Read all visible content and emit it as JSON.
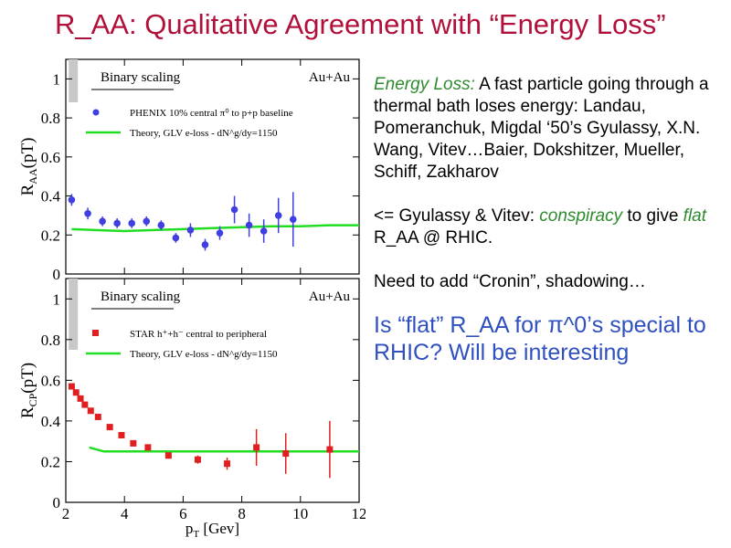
{
  "slide": {
    "title": "R_AA: Qualitative Agreement with “Energy Loss”"
  },
  "notes": {
    "p1_em": "Energy Loss:",
    "p1_rest": " A fast particle going through a thermal bath loses energy: Landau, Pomeranchuk, Migdal ‘50’s Gyulassy, X.N. Wang, Vitev…Baier, Dokshitzer, Mueller, Schiff, Zakharov",
    "p2_a": "<= Gyulassy & Vitev: ",
    "p2_em1": "conspiracy",
    "p2_b": " to give ",
    "p2_em2": "flat",
    "p2_c": " R_AA @ RHIC.",
    "p3": "Need to add “Cronin”, shadowing…",
    "p4": "Is “flat” R_AA for π^0’s special to RHIC?  Will be interesting"
  },
  "colors": {
    "data_top": "#4040e0",
    "data_bottom": "#e02020",
    "theory": "#22dd22",
    "band": "#c8c8c8",
    "title": "#b0103a"
  },
  "chart_data": [
    {
      "type": "scatter",
      "ylabel": "R_AA(p_T)",
      "legend": [
        "Binary scaling",
        "PHENIX 10% central π⁰ to p+p baseline",
        "Theory, GLV e-loss - dN^g/dy=1150"
      ],
      "system_label": "Au+Au",
      "xlim": [
        2,
        12
      ],
      "ylim": [
        0,
        1.1
      ],
      "yticks": [
        "0",
        "0.2",
        "0.4",
        "0.6",
        "0.8",
        "1"
      ],
      "band": {
        "ylo": 0.88,
        "yhi": 1.12
      },
      "points": [
        {
          "x": 2.2,
          "y": 0.38,
          "err": 0.03
        },
        {
          "x": 2.75,
          "y": 0.31,
          "err": 0.03
        },
        {
          "x": 3.25,
          "y": 0.27,
          "err": 0.025
        },
        {
          "x": 3.75,
          "y": 0.26,
          "err": 0.025
        },
        {
          "x": 4.25,
          "y": 0.26,
          "err": 0.025
        },
        {
          "x": 4.75,
          "y": 0.27,
          "err": 0.025
        },
        {
          "x": 5.25,
          "y": 0.25,
          "err": 0.025
        },
        {
          "x": 5.75,
          "y": 0.185,
          "err": 0.025
        },
        {
          "x": 6.25,
          "y": 0.225,
          "err": 0.035
        },
        {
          "x": 6.75,
          "y": 0.15,
          "err": 0.03
        },
        {
          "x": 7.25,
          "y": 0.21,
          "err": 0.035
        },
        {
          "x": 7.75,
          "y": 0.33,
          "err": 0.07
        },
        {
          "x": 8.25,
          "y": 0.25,
          "err": 0.06
        },
        {
          "x": 8.75,
          "y": 0.22,
          "err": 0.06
        },
        {
          "x": 9.25,
          "y": 0.3,
          "err": 0.09
        },
        {
          "x": 9.75,
          "y": 0.28,
          "err": 0.14
        }
      ],
      "theory": [
        [
          2.2,
          0.23
        ],
        [
          3,
          0.225
        ],
        [
          4,
          0.22
        ],
        [
          5,
          0.225
        ],
        [
          6,
          0.23
        ],
        [
          7,
          0.235
        ],
        [
          8,
          0.24
        ],
        [
          9,
          0.245
        ],
        [
          10,
          0.245
        ],
        [
          11,
          0.25
        ],
        [
          12,
          0.25
        ]
      ]
    },
    {
      "type": "scatter",
      "ylabel": "R_CP(p_T)",
      "xlabel": "p_T [Gev]",
      "legend": [
        "Binary scaling",
        "STAR h⁺+h⁻ central to peripheral",
        "Theory, GLV e-loss - dN^g/dy=1150"
      ],
      "system_label": "Au+Au",
      "xlim": [
        2,
        12
      ],
      "ylim": [
        0,
        1.1
      ],
      "xticks": [
        "2",
        "4",
        "6",
        "8",
        "10",
        "12"
      ],
      "yticks": [
        "0",
        "0.2",
        "0.4",
        "0.6",
        "0.8",
        "1"
      ],
      "band": {
        "ylo": 0.75,
        "yhi": 1.13
      },
      "points": [
        {
          "x": 2.2,
          "y": 0.57,
          "err": 0.01
        },
        {
          "x": 2.35,
          "y": 0.54,
          "err": 0.01
        },
        {
          "x": 2.5,
          "y": 0.51,
          "err": 0.01
        },
        {
          "x": 2.65,
          "y": 0.48,
          "err": 0.01
        },
        {
          "x": 2.85,
          "y": 0.45,
          "err": 0.01
        },
        {
          "x": 3.1,
          "y": 0.42,
          "err": 0.01
        },
        {
          "x": 3.5,
          "y": 0.37,
          "err": 0.01
        },
        {
          "x": 3.9,
          "y": 0.33,
          "err": 0.01
        },
        {
          "x": 4.3,
          "y": 0.29,
          "err": 0.015
        },
        {
          "x": 4.8,
          "y": 0.27,
          "err": 0.015
        },
        {
          "x": 5.5,
          "y": 0.23,
          "err": 0.015
        },
        {
          "x": 6.5,
          "y": 0.21,
          "err": 0.02
        },
        {
          "x": 7.5,
          "y": 0.19,
          "err": 0.03
        },
        {
          "x": 8.5,
          "y": 0.27,
          "err": 0.09
        },
        {
          "x": 9.5,
          "y": 0.24,
          "err": 0.1
        },
        {
          "x": 11,
          "y": 0.26,
          "err": 0.14
        }
      ],
      "theory": [
        [
          2.8,
          0.27
        ],
        [
          3.3,
          0.25
        ],
        [
          4,
          0.25
        ],
        [
          6,
          0.25
        ],
        [
          8,
          0.25
        ],
        [
          10,
          0.25
        ],
        [
          12,
          0.25
        ]
      ]
    }
  ]
}
